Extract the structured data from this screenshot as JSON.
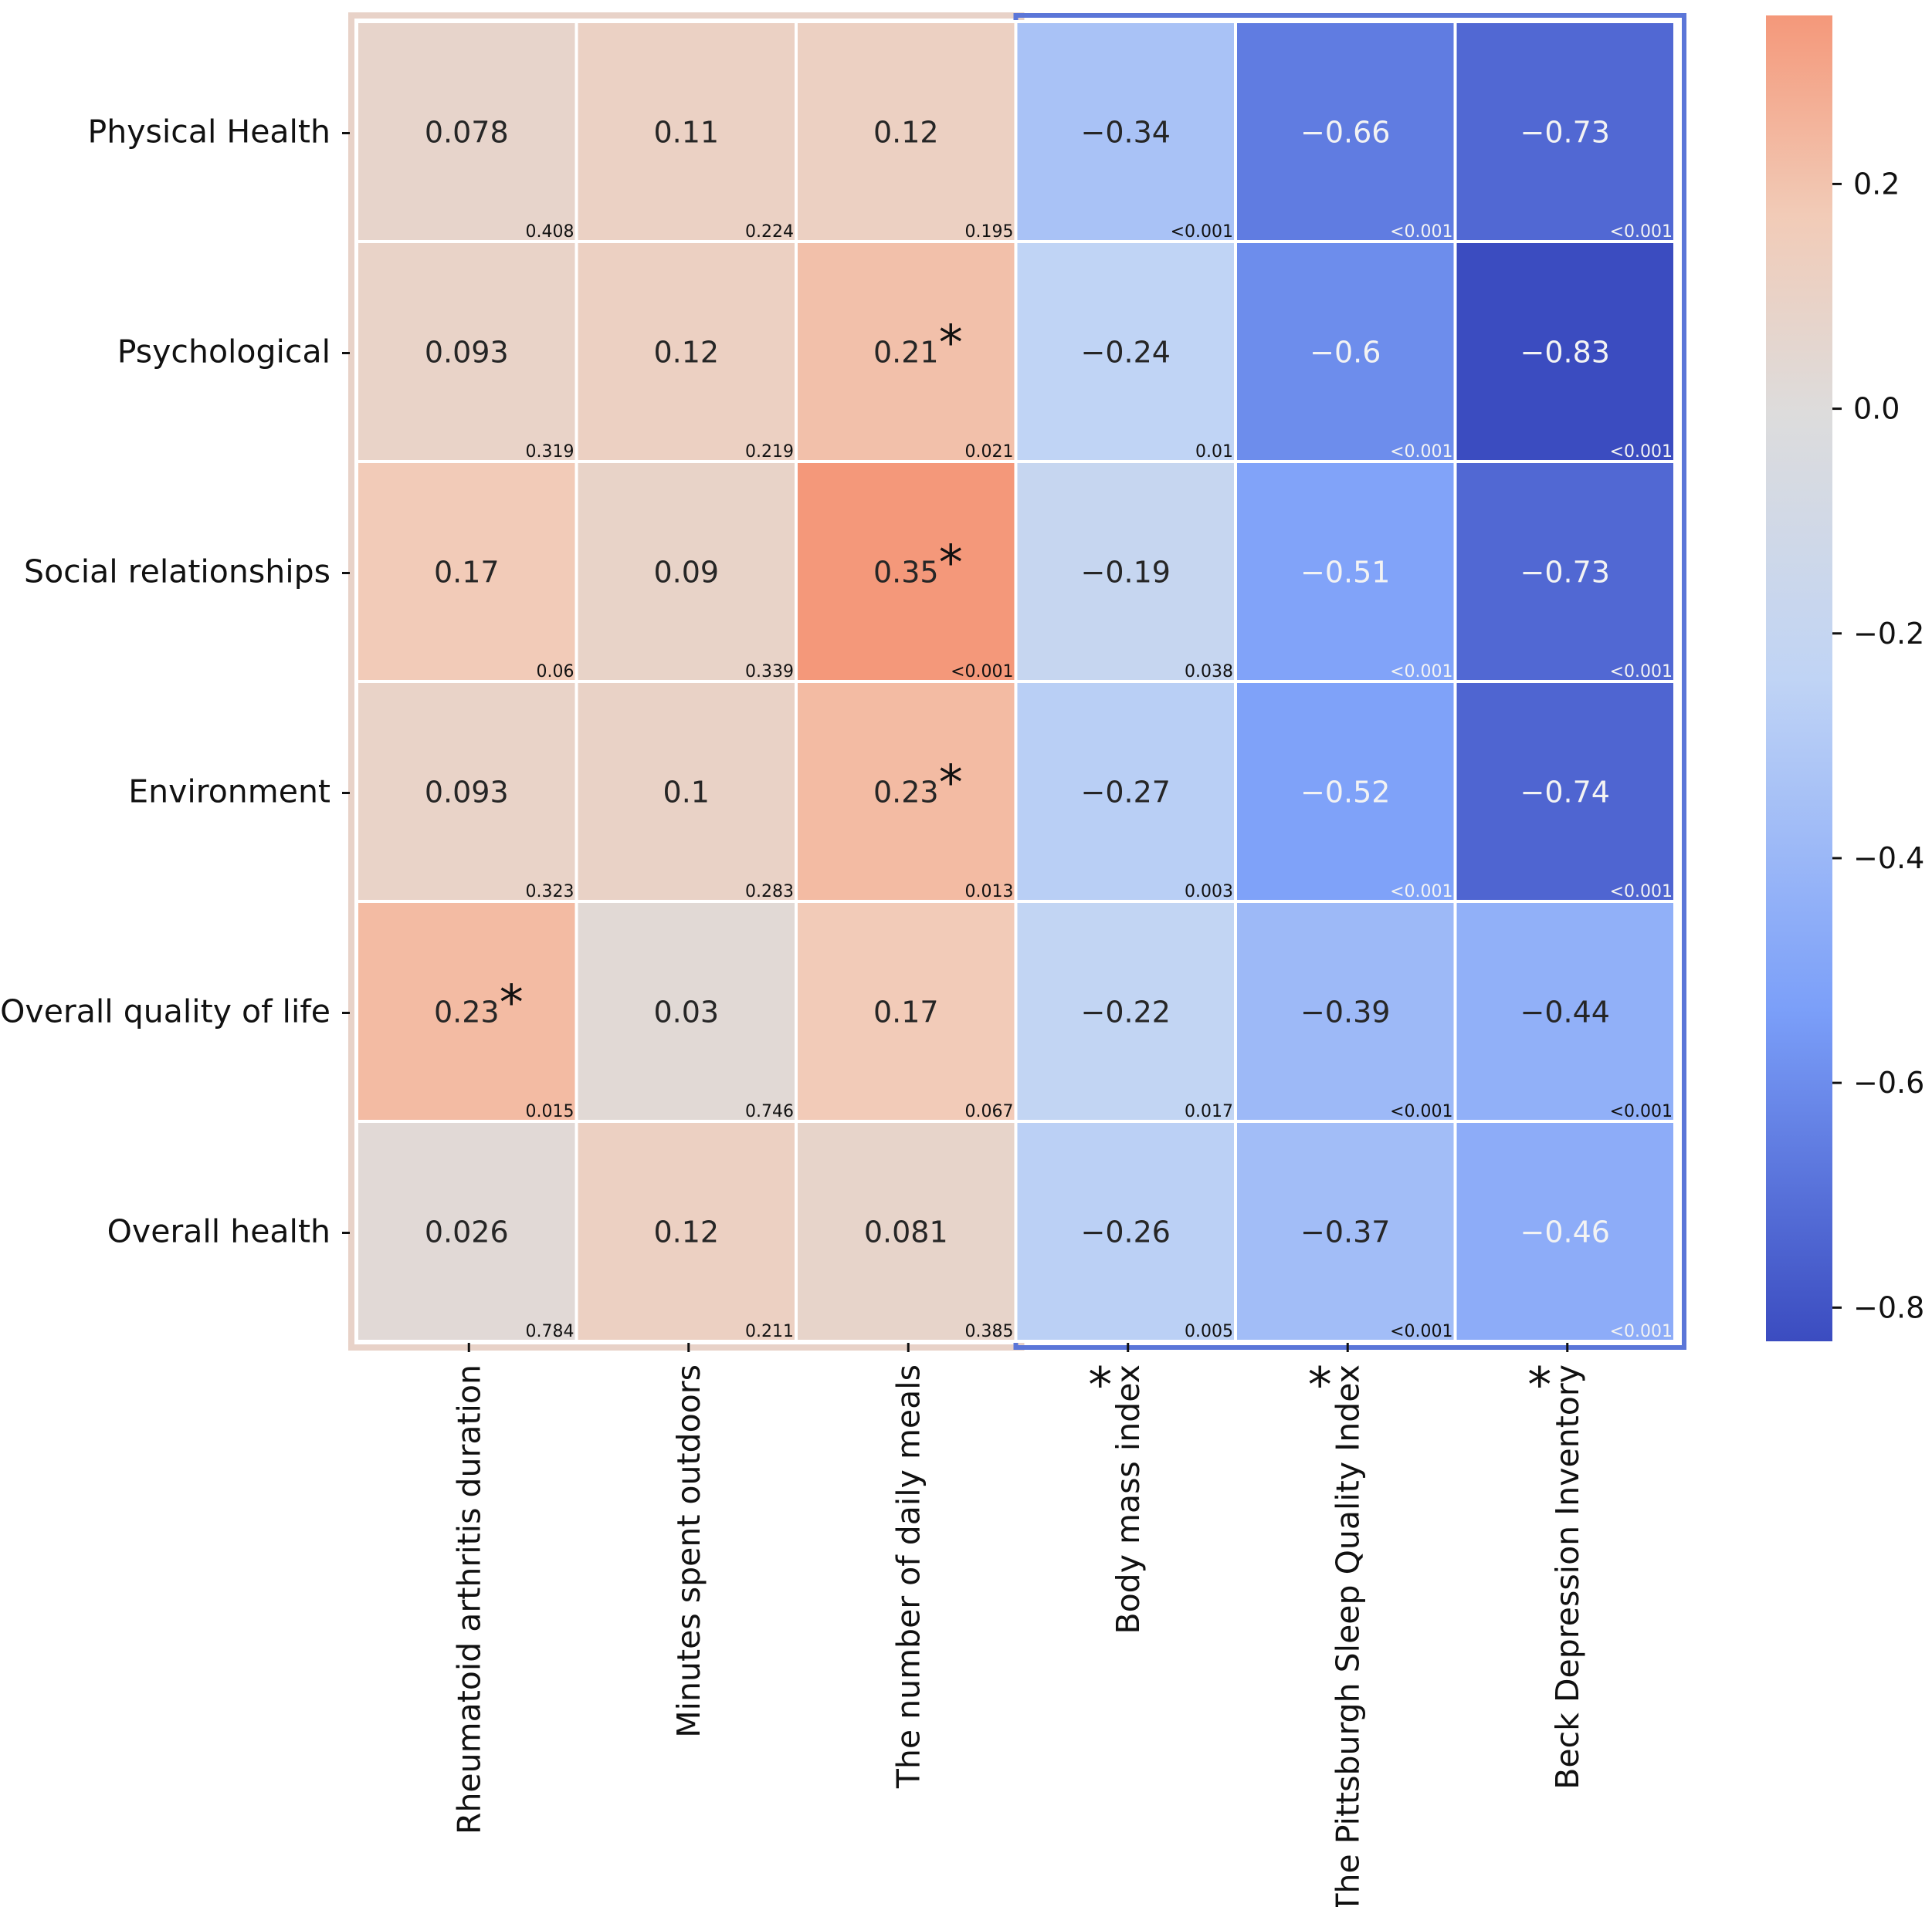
{
  "chart_data": {
    "type": "heatmap",
    "title": "",
    "rows": [
      "Physical Health",
      "Psychological",
      "Social relationships",
      "Environment",
      "Overall quality of life",
      "Overall health"
    ],
    "columns": [
      "Rheumatoid arthritis duration",
      "Minutes spent outdoors",
      "The number of daily meals",
      "Body mass index",
      "The Pittsburgh Sleep Quality Index",
      "Beck Depression Inventory"
    ],
    "values": [
      [
        "0.078",
        "0.11",
        "0.12",
        "−0.34",
        "−0.66",
        "−0.73"
      ],
      [
        "0.093",
        "0.12",
        "0.21",
        "−0.24",
        "−0.6",
        "−0.83"
      ],
      [
        "0.17",
        "0.09",
        "0.35",
        "−0.19",
        "−0.51",
        "−0.73"
      ],
      [
        "0.093",
        "0.1",
        "0.23",
        "−0.27",
        "−0.52",
        "−0.74"
      ],
      [
        "0.23",
        "0.03",
        "0.17",
        "−0.22",
        "−0.39",
        "−0.44"
      ],
      [
        "0.026",
        "0.12",
        "0.081",
        "−0.26",
        "−0.37",
        "−0.46"
      ]
    ],
    "p_values": [
      [
        "0.408",
        "0.224",
        "0.195",
        "<0.001",
        "<0.001",
        "<0.001"
      ],
      [
        "0.319",
        "0.219",
        "0.021",
        "0.01",
        "<0.001",
        "<0.001"
      ],
      [
        "0.06",
        "0.339",
        "<0.001",
        "0.038",
        "<0.001",
        "<0.001"
      ],
      [
        "0.323",
        "0.283",
        "0.013",
        "0.003",
        "<0.001",
        "<0.001"
      ],
      [
        "0.015",
        "0.746",
        "0.067",
        "0.017",
        "<0.001",
        "<0.001"
      ],
      [
        "0.784",
        "0.211",
        "0.385",
        "0.005",
        "<0.001",
        "<0.001"
      ]
    ],
    "starred_cells": [
      [
        1,
        2
      ],
      [
        2,
        2
      ],
      [
        3,
        2
      ],
      [
        4,
        0
      ]
    ],
    "starred_columns": [
      3,
      4,
      5
    ],
    "star_symbol": "*",
    "colorbar": {
      "colormap": "coolwarm",
      "range": [
        -0.83,
        0.35
      ],
      "ticks": [
        "0.2",
        "0.0",
        "−0.2",
        "−0.4",
        "−0.6",
        "−0.8"
      ]
    }
  }
}
